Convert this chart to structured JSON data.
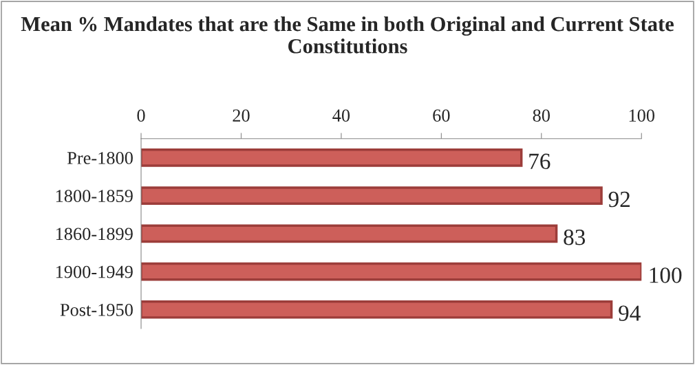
{
  "chart_data": {
    "type": "bar",
    "orientation": "horizontal",
    "title": "Mean % Mandates that are the Same in both Original and Current State Constitutions",
    "categories": [
      "Pre-1800",
      "1800-1859",
      "1860-1899",
      "1900-1949",
      "Post-1950"
    ],
    "values": [
      76,
      92,
      83,
      100,
      94
    ],
    "color": "#cd5f5a",
    "xlim": [
      0,
      100
    ],
    "xticks": [
      0,
      20,
      40,
      60,
      80,
      100
    ],
    "grid": false,
    "data_labels": true
  }
}
